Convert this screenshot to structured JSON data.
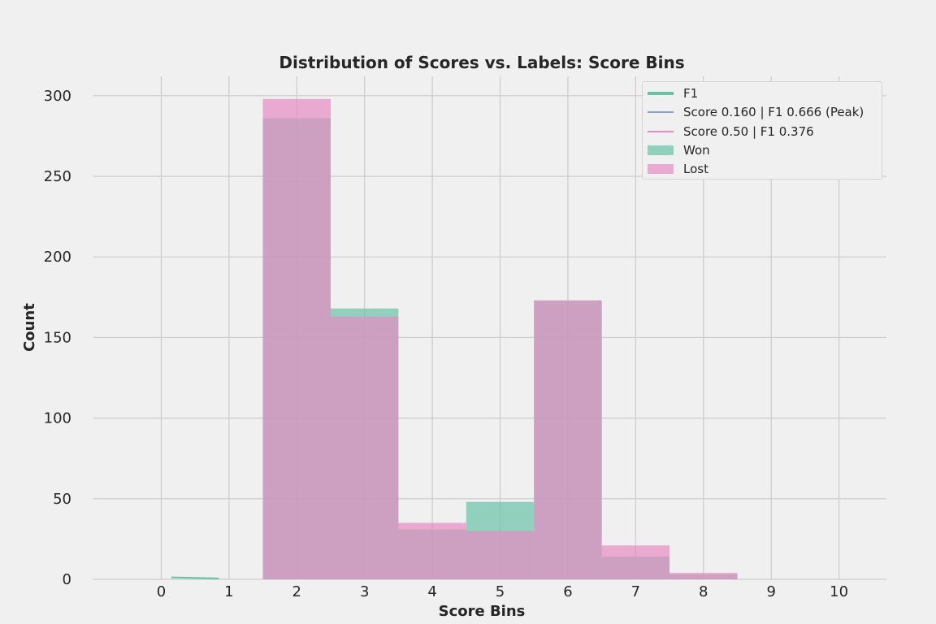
{
  "chart_data": {
    "type": "bar",
    "title": "Distribution of Scores vs. Labels: Score Bins",
    "xlabel": "Score Bins",
    "ylabel": "Count",
    "xlim": [
      -1,
      10.7
    ],
    "ylim": [
      0,
      312
    ],
    "xticks": [
      "0",
      "1",
      "2",
      "3",
      "4",
      "5",
      "6",
      "7",
      "8",
      "9",
      "10"
    ],
    "yticks": [
      "0",
      "50",
      "100",
      "150",
      "200",
      "250",
      "300"
    ],
    "grid": true,
    "legend_position": "top-right",
    "bin_width": 1,
    "series": [
      {
        "name": "Won",
        "color": "#66c2a5",
        "bins": [
          2,
          3,
          4,
          5,
          6,
          7,
          8
        ],
        "values": [
          286,
          168,
          31,
          48,
          173,
          14,
          3
        ]
      },
      {
        "name": "Lost",
        "color": "#e78ac3",
        "bins": [
          2,
          3,
          4,
          5,
          6,
          7,
          8
        ],
        "values": [
          298,
          163,
          35,
          30,
          173,
          21,
          4
        ]
      }
    ],
    "f1_line": {
      "name": "F1",
      "color": "#66c2a5",
      "x": [
        0.15,
        0.35,
        0.55,
        0.85
      ],
      "y": [
        1.2,
        1.0,
        0.8,
        0.5
      ]
    },
    "reference_lines": [
      {
        "name": "Score 0.160 | F1 0.666 (Peak)",
        "color": "#8da0cb"
      },
      {
        "name": "Score 0.50 | F1 0.376",
        "color": "#e78ac3"
      }
    ]
  },
  "legend": {
    "items": [
      {
        "label": "F1",
        "kind": "line",
        "color": "#66c2a5"
      },
      {
        "label": "Score 0.160 | F1 0.666 (Peak)",
        "kind": "line",
        "color": "#8da0cb"
      },
      {
        "label": "Score 0.50 | F1 0.376",
        "kind": "line",
        "color": "#e78ac3"
      },
      {
        "label": "Won",
        "kind": "patch",
        "color": "#66c2a5"
      },
      {
        "label": "Lost",
        "kind": "patch",
        "color": "#e78ac3"
      }
    ]
  }
}
